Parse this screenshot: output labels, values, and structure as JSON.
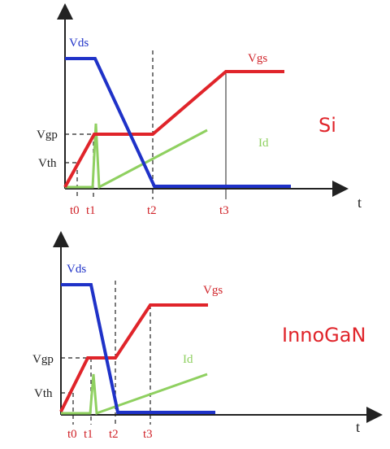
{
  "panels": [
    {
      "material": "Si",
      "signals": {
        "vds": "Vds",
        "vgs": "Vgs",
        "id": "Id"
      },
      "levels": {
        "vgp": "Vgp",
        "vth": "Vth"
      },
      "times": [
        "t0",
        "t1",
        "t2",
        "t3"
      ],
      "axis": "t"
    },
    {
      "material": "InnoGaN",
      "signals": {
        "vds": "Vds",
        "vgs": "Vgs",
        "id": "Id"
      },
      "levels": {
        "vgp": "Vgp",
        "vth": "Vth"
      },
      "times": [
        "t0",
        "t1",
        "t2",
        "t3"
      ],
      "axis": "t"
    }
  ]
}
